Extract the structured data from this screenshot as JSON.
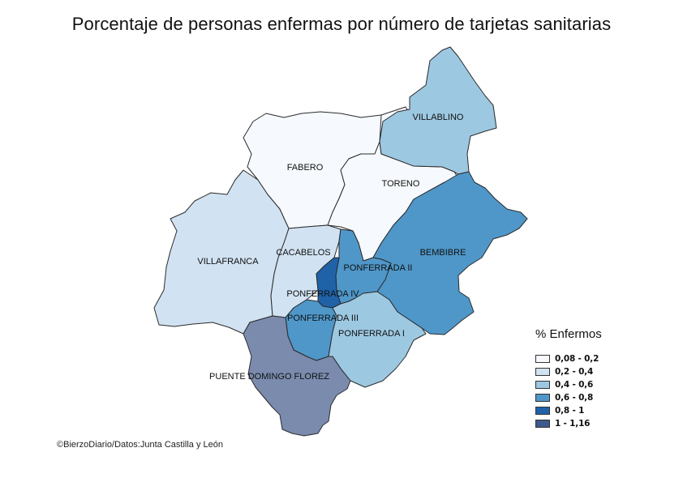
{
  "title": "Porcentaje de personas enfermas por número de tarjetas sanitarias",
  "source": "©BierzoDiario/Datos:Junta Castilla y León",
  "colors": {
    "c1": "#f6f9fe",
    "c2": "#d1e2f2",
    "c3": "#9dc8e2",
    "c4": "#4f97c9",
    "c5": "#1f62a8",
    "c6": "#7a8bae"
  },
  "legend": {
    "title": "% Enfermos",
    "items": [
      {
        "label": "0,08 - 0,2",
        "color": "#f6f9fe"
      },
      {
        "label": "0,2 - 0,4",
        "color": "#d1e2f2"
      },
      {
        "label": "0,4 - 0,6",
        "color": "#9dc8e2"
      },
      {
        "label": "0,6 - 0,8",
        "color": "#4f97c9"
      },
      {
        "label": "0,8 - 1",
        "color": "#1f62a8"
      },
      {
        "label": "1 - 1,16",
        "color": "#3f5a8c"
      }
    ]
  },
  "regions": [
    {
      "name": "VILLABLINO",
      "class": "0,4 - 0,6"
    },
    {
      "name": "FABERO",
      "class": "0,08 - 0,2"
    },
    {
      "name": "TORENO",
      "class": "0,08 - 0,2"
    },
    {
      "name": "BEMBIBRE",
      "class": "0,6 - 0,8"
    },
    {
      "name": "VILLAFRANCA",
      "class": "0,2 - 0,4"
    },
    {
      "name": "CACABELOS",
      "class": "0,2 - 0,4"
    },
    {
      "name": "PONFERRADA II",
      "class": "0,6 - 0,8"
    },
    {
      "name": "PONFERRADA IV",
      "class": "0,8 - 1"
    },
    {
      "name": "PONFERRADA III",
      "class": "0,6 - 0,8"
    },
    {
      "name": "PONFERRADA I",
      "class": "0,4 - 0,6"
    },
    {
      "name": "PUENTE DOMINGO FLOREZ",
      "class": "1 - 1,16"
    }
  ]
}
